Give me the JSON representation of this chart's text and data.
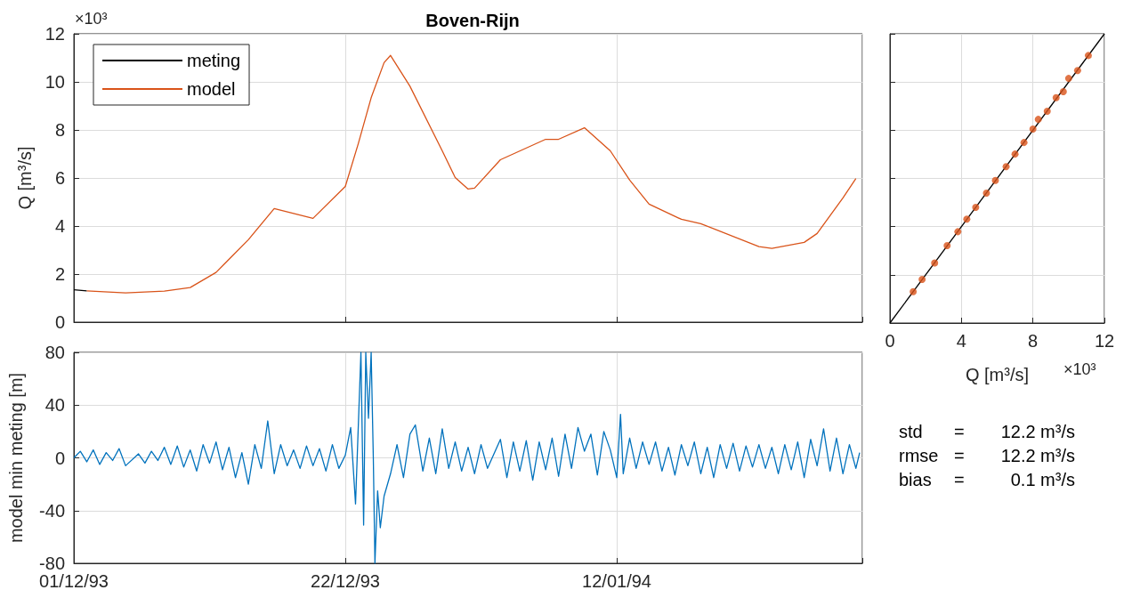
{
  "chart_data": [
    {
      "type": "line",
      "title": "Boven-Rijn",
      "ylabel": "Q [m³/s]",
      "annotations": [
        "×10³"
      ],
      "legend": "top left",
      "grid": true,
      "tick_labels": "y",
      "xlim": [
        "1993-12-01",
        "1994-01-31"
      ],
      "xticks": [
        {
          "value": "1993-12-01",
          "label": null
        },
        {
          "value": "1993-12-22",
          "label": null
        },
        {
          "value": "1994-01-12",
          "label": null
        }
      ],
      "ylim": [
        0,
        12
      ],
      "yticks": [
        0,
        2,
        4,
        6,
        8,
        10,
        12
      ],
      "x": [
        "1993-12-01T00:00",
        "1993-12-02T00:00",
        "1993-12-05T00:00",
        "1993-12-08T00:00",
        "1993-12-10T00:00",
        "1993-12-12T00:00",
        "1993-12-14T12:00",
        "1993-12-16T12:00",
        "1993-12-19T12:00",
        "1993-12-22T00:00",
        "1993-12-23T00:00",
        "1993-12-24T00:00",
        "1993-12-25T00:00",
        "1993-12-25T12:00",
        "1993-12-27T00:00",
        "1993-12-29T12:00",
        "1993-12-30T12:00",
        "1993-12-31T12:00",
        "1994-01-01T00:00",
        "1994-01-03T00:00",
        "1994-01-06T12:00",
        "1994-01-07T12:00",
        "1994-01-09T12:00",
        "1994-01-11T12:00",
        "1994-01-13T00:00",
        "1994-01-14T12:00",
        "1994-01-17T00:00",
        "1994-01-18T12:00",
        "1994-01-23T00:00",
        "1994-01-24T00:00",
        "1994-01-26T12:00",
        "1994-01-27T12:00",
        "1994-01-29T12:00",
        "1994-01-30T12:00"
      ],
      "series": [
        {
          "name": "meting",
          "color": "#000000",
          "values": [
            1.35,
            1.3,
            null,
            null,
            null,
            null,
            null,
            null,
            null,
            null,
            null,
            null,
            null,
            null,
            null,
            null,
            null,
            null,
            null,
            null,
            null,
            null,
            null,
            null,
            null,
            null,
            null,
            null,
            null,
            null,
            null,
            null,
            null,
            null
          ]
        },
        {
          "name": "model",
          "color": "#d95319",
          "values": [
            null,
            1.3,
            1.22,
            1.29,
            1.44,
            2.07,
            3.43,
            4.73,
            4.32,
            5.65,
            7.42,
            9.34,
            10.8,
            11.1,
            9.82,
            7.13,
            6.02,
            5.54,
            5.58,
            6.76,
            7.61,
            7.61,
            8.09,
            7.13,
            5.91,
            4.91,
            4.28,
            4.1,
            3.14,
            3.07,
            3.32,
            3.69,
            5.17,
            5.98
          ]
        }
      ]
    },
    {
      "type": "line",
      "ylabel": "model min meting [m]",
      "grid": true,
      "xlim": [
        "1993-12-01",
        "1994-01-31"
      ],
      "xticks": [
        {
          "value": "1993-12-01",
          "label": "01/12/93"
        },
        {
          "value": "1993-12-22",
          "label": "22/12/93"
        },
        {
          "value": "1994-01-12",
          "label": "12/01/94"
        }
      ],
      "ylim": [
        -80,
        80
      ],
      "yticks": [
        -80,
        -40,
        0,
        40,
        80
      ],
      "x": [
        "1993-12-01T00:00",
        "1993-12-01T12:00",
        "1993-12-02T00:00",
        "1993-12-02T12:00",
        "1993-12-03T00:00",
        "1993-12-03T12:00",
        "1993-12-04T00:00",
        "1993-12-04T12:00",
        "1993-12-05T00:00",
        "1993-12-06T00:00",
        "1993-12-06T12:00",
        "1993-12-07T00:00",
        "1993-12-07T12:00",
        "1993-12-08T00:00",
        "1993-12-08T12:00",
        "1993-12-09T00:00",
        "1993-12-09T12:00",
        "1993-12-10T00:00",
        "1993-12-10T12:00",
        "1993-12-11T00:00",
        "1993-12-11T12:00",
        "1993-12-12T00:00",
        "1993-12-12T12:00",
        "1993-12-13T00:00",
        "1993-12-13T12:00",
        "1993-12-14T00:00",
        "1993-12-14T12:00",
        "1993-12-15T00:00",
        "1993-12-15T12:00",
        "1993-12-16T00:00",
        "1993-12-16T12:00",
        "1993-12-17T00:00",
        "1993-12-17T12:00",
        "1993-12-18T00:00",
        "1993-12-18T12:00",
        "1993-12-19T00:00",
        "1993-12-19T12:00",
        "1993-12-20T00:00",
        "1993-12-20T12:00",
        "1993-12-21T00:00",
        "1993-12-21T12:00",
        "1993-12-22T00:00",
        "1993-12-22T10:00",
        "1993-12-22T19:00",
        "1993-12-23T05:00",
        "1993-12-23T10:00",
        "1993-12-23T14:00",
        "1993-12-23T19:00",
        "1993-12-24T00:00",
        "1993-12-24T04:00",
        "1993-12-24T07:00",
        "1993-12-24T12:00",
        "1993-12-24T17:00",
        "1993-12-25T00:00",
        "1993-12-25T12:00",
        "1993-12-26T00:00",
        "1993-12-26T12:00",
        "1993-12-27T00:00",
        "1993-12-27T10:00",
        "1993-12-28T00:00",
        "1993-12-28T12:00",
        "1993-12-29T00:00",
        "1993-12-29T12:00",
        "1993-12-30T00:00",
        "1993-12-30T12:00",
        "1993-12-31T00:00",
        "1993-12-31T12:00",
        "1994-01-01T00:00",
        "1994-01-01T12:00",
        "1994-01-02T00:00",
        "1994-01-03T00:00",
        "1994-01-03T12:00",
        "1994-01-04T00:00",
        "1994-01-04T12:00",
        "1994-01-05T00:00",
        "1994-01-05T12:00",
        "1994-01-06T00:00",
        "1994-01-06T12:00",
        "1994-01-07T00:00",
        "1994-01-07T12:00",
        "1994-01-08T00:00",
        "1994-01-08T12:00",
        "1994-01-09T00:00",
        "1994-01-09T12:00",
        "1994-01-10T00:00",
        "1994-01-10T12:00",
        "1994-01-11T00:00",
        "1994-01-11T12:00",
        "1994-01-12T00:00",
        "1994-01-12T07:00",
        "1994-01-12T12:00",
        "1994-01-13T00:00",
        "1994-01-13T12:00",
        "1994-01-14T00:00",
        "1994-01-14T12:00",
        "1994-01-15T00:00",
        "1994-01-15T12:00",
        "1994-01-16T00:00",
        "1994-01-16T12:00",
        "1994-01-17T00:00",
        "1994-01-17T12:00",
        "1994-01-18T00:00",
        "1994-01-18T12:00",
        "1994-01-19T00:00",
        "1994-01-19T12:00",
        "1994-01-20T00:00",
        "1994-01-20T12:00",
        "1994-01-21T00:00",
        "1994-01-21T12:00",
        "1994-01-22T00:00",
        "1994-01-22T12:00",
        "1994-01-23T00:00",
        "1994-01-23T12:00",
        "1994-01-24T00:00",
        "1994-01-24T12:00",
        "1994-01-25T00:00",
        "1994-01-25T12:00",
        "1994-01-26T00:00",
        "1994-01-26T12:00",
        "1994-01-27T00:00",
        "1994-01-27T12:00",
        "1994-01-28T00:00",
        "1994-01-28T12:00",
        "1994-01-29T00:00",
        "1994-01-29T12:00",
        "1994-01-30T00:00",
        "1994-01-30T12:00",
        "1994-01-30T19:00"
      ],
      "series": [
        {
          "color": "#0072bd",
          "values": [
            0,
            5,
            -3,
            6,
            -5,
            4,
            -2,
            7,
            -6,
            3,
            -4,
            5,
            -2,
            8,
            -5,
            9,
            -7,
            6,
            -10,
            10,
            -4,
            12,
            -9,
            8,
            -15,
            4,
            -20,
            10,
            -8,
            28,
            -12,
            10,
            -6,
            6,
            -8,
            9,
            -6,
            7,
            -10,
            10,
            -8,
            2,
            23,
            -35,
            80,
            -51,
            80,
            30,
            80,
            0,
            -80,
            -25,
            -53,
            -29,
            -12,
            10,
            -15,
            18,
            25,
            -10,
            15,
            -12,
            22,
            -8,
            12,
            -10,
            8,
            -12,
            10,
            -8,
            14,
            -15,
            12,
            -10,
            13,
            -17,
            12,
            -9,
            15,
            -14,
            18,
            -8,
            23,
            5,
            18,
            -13,
            20,
            6,
            -15,
            33,
            -12,
            15,
            -8,
            12,
            -5,
            12,
            -10,
            8,
            -13,
            10,
            -6,
            12,
            -12,
            8,
            -15,
            10,
            -8,
            11,
            -10,
            9,
            -7,
            10,
            -8,
            8,
            -12,
            10,
            -9,
            12,
            -15,
            14,
            -6,
            22,
            -10,
            15,
            -12,
            10,
            -8,
            4
          ]
        }
      ]
    },
    {
      "type": "scatter",
      "xlabel": "Q [m³/s]",
      "annotations": [
        "×10³"
      ],
      "grid": true,
      "tick_labels": "x",
      "xlim": [
        0,
        12
      ],
      "xticks": [
        0,
        4,
        8,
        12
      ],
      "ylim": [
        0,
        12
      ],
      "yticks": [
        0,
        2,
        4,
        6,
        8,
        10,
        12
      ],
      "series": [
        {
          "type": "line",
          "color": "#000000",
          "x": [
            0,
            12
          ],
          "values": [
            0,
            12
          ]
        },
        {
          "color": "#d95319",
          "marker": "circle",
          "x": [
            1.3,
            1.8,
            2.5,
            3.2,
            3.8,
            4.3,
            4.8,
            5.4,
            5.9,
            6.5,
            7.0,
            7.5,
            8.0,
            8.3,
            8.8,
            9.3,
            9.7,
            10.0,
            10.5,
            11.1
          ],
          "values": [
            1.3,
            1.81,
            2.49,
            3.21,
            3.79,
            4.31,
            4.8,
            5.39,
            5.92,
            6.49,
            7.01,
            7.49,
            8.05,
            8.45,
            8.79,
            9.35,
            9.6,
            10.15,
            10.48,
            11.1
          ]
        }
      ]
    },
    {
      "type": "other",
      "annotations": [
        "std = 12.2 m³/s",
        "rmse = 12.2 m³/s",
        "bias = 0.1 m³/s"
      ]
    }
  ]
}
